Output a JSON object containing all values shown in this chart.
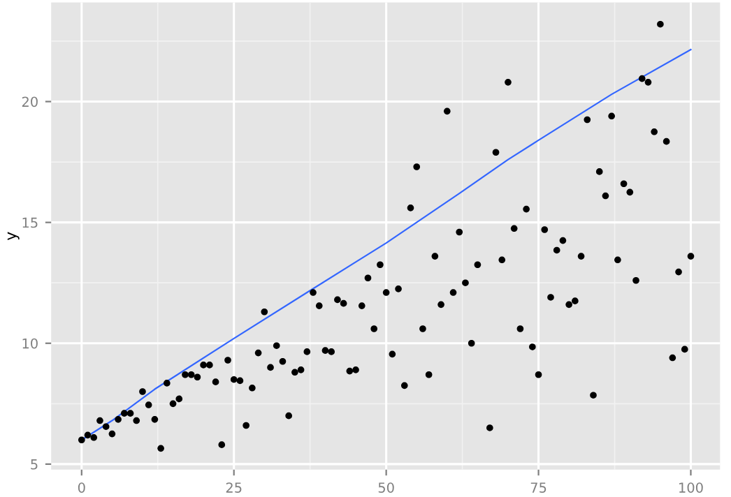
{
  "chart_data": {
    "type": "scatter",
    "ylabel": "y",
    "x": [
      0,
      1,
      2,
      3,
      4,
      5,
      6,
      7,
      8,
      9,
      10,
      11,
      12,
      13,
      14,
      15,
      16,
      17,
      18,
      19,
      20,
      21,
      22,
      23,
      24,
      25,
      26,
      27,
      28,
      29,
      30,
      31,
      32,
      33,
      34,
      35,
      36,
      37,
      38,
      39,
      40,
      41,
      42,
      43,
      44,
      45,
      46,
      47,
      48,
      49,
      50,
      51,
      52,
      53,
      54,
      55,
      56,
      57,
      58,
      59,
      60,
      61,
      62,
      63,
      64,
      65,
      67,
      68,
      69,
      70,
      71,
      72,
      73,
      74,
      75,
      76,
      77,
      78,
      79,
      80,
      81,
      82,
      83,
      84,
      85,
      86,
      87,
      88,
      89,
      90,
      91,
      92,
      93,
      94,
      95,
      96,
      97,
      98,
      99,
      100
    ],
    "series": [
      {
        "color": "#000000",
        "marker": "circle",
        "values": [
          6.0,
          6.2,
          6.1,
          6.8,
          6.55,
          6.25,
          6.85,
          7.1,
          7.1,
          6.8,
          8.0,
          7.45,
          6.85,
          5.65,
          8.35,
          7.5,
          7.7,
          8.7,
          8.7,
          8.6,
          9.1,
          9.1,
          8.4,
          5.8,
          9.3,
          8.5,
          8.45,
          6.6,
          8.15,
          9.6,
          11.3,
          9.0,
          9.9,
          9.25,
          7.0,
          8.8,
          8.9,
          9.65,
          12.1,
          11.55,
          9.7,
          9.65,
          11.8,
          11.65,
          8.85,
          8.9,
          11.55,
          12.7,
          10.6,
          13.25,
          12.1,
          9.55,
          12.25,
          8.25,
          15.6,
          17.3,
          10.6,
          8.7,
          13.6,
          11.6,
          19.6,
          12.1,
          14.6,
          12.5,
          10.0,
          13.25,
          6.5,
          17.9,
          13.45,
          20.8,
          14.75,
          10.6,
          15.55,
          9.85,
          8.7,
          14.7,
          11.9,
          13.85,
          14.25,
          11.6,
          11.75,
          13.6,
          19.25,
          7.85,
          17.1,
          16.1,
          19.4,
          13.45,
          16.6,
          16.25,
          12.6,
          20.95,
          20.8,
          18.75,
          23.2,
          18.35,
          9.4,
          12.95,
          9.75,
          13.6
        ]
      },
      {
        "type": "line",
        "color": "#3366ff",
        "marker": "none",
        "line_style": "solid",
        "x": [
          0,
          5,
          12,
          25,
          37,
          50,
          62,
          70,
          75,
          87,
          100
        ],
        "values": [
          6.0,
          6.8,
          8.1,
          10.2,
          12.1,
          14.15,
          16.2,
          17.6,
          18.4,
          20.3,
          22.15
        ]
      }
    ],
    "xlim": [
      -5,
      104.8
    ],
    "ylim": [
      4.77,
      24.1
    ],
    "xticks": [
      0,
      25,
      50,
      75,
      100
    ],
    "yticks": [
      5,
      10,
      15,
      20
    ],
    "grid": true
  }
}
